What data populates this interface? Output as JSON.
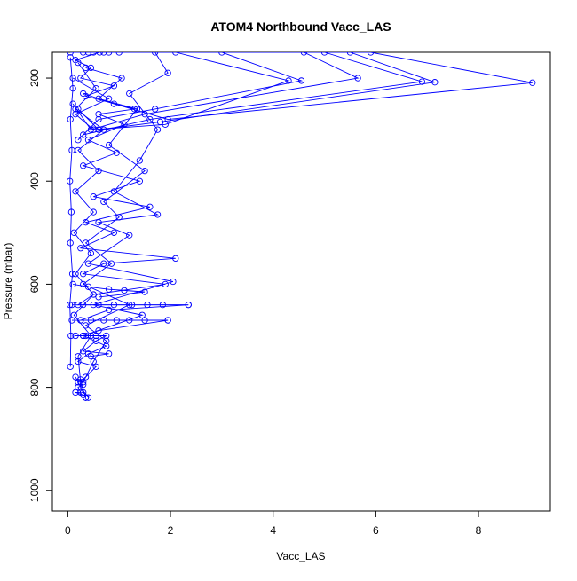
{
  "chart_data": {
    "type": "line",
    "title": "ATOM4 Northbound Vacc_LAS",
    "xlabel": "Vacc_LAS",
    "ylabel": "Pressure (mbar)",
    "xlim": [
      -0.3,
      9.4
    ],
    "ylim": [
      1040,
      150
    ],
    "y_axis_inverted": true,
    "x_ticks": [
      0,
      2,
      4,
      6,
      8
    ],
    "y_ticks": [
      200,
      400,
      600,
      800,
      1000
    ],
    "grid": false,
    "legend": "none",
    "marker": "open-circle",
    "series_color": "#0000ff",
    "series": [
      {
        "points": [
          [
            0.62,
            150
          ],
          [
            0.15,
            165
          ],
          [
            0.45,
            180
          ],
          [
            0.25,
            200
          ],
          [
            0.9,
            215
          ],
          [
            0.35,
            235
          ],
          [
            1.3,
            260
          ],
          [
            0.6,
            270
          ],
          [
            1.1,
            290
          ],
          [
            0.4,
            320
          ],
          [
            0.95,
            345
          ],
          [
            0.3,
            370
          ],
          [
            1.4,
            400
          ],
          [
            0.5,
            430
          ],
          [
            1.6,
            450
          ],
          [
            0.35,
            480
          ],
          [
            0.9,
            500
          ],
          [
            0.25,
            530
          ],
          [
            2.1,
            550
          ],
          [
            0.7,
            560
          ],
          [
            0.3,
            580
          ],
          [
            1.9,
            600
          ],
          [
            0.5,
            620
          ],
          [
            0.2,
            640
          ],
          [
            2.35,
            640
          ],
          [
            0.8,
            650
          ],
          [
            0.25,
            670
          ],
          [
            1.95,
            670
          ],
          [
            0.6,
            690
          ],
          [
            0.3,
            700
          ],
          [
            0.75,
            720
          ],
          [
            0.4,
            735
          ],
          [
            0.2,
            750
          ],
          [
            0.55,
            760
          ],
          [
            0.35,
            780
          ],
          [
            0.2,
            790
          ],
          [
            0.3,
            810
          ],
          [
            0.4,
            820
          ]
        ]
      },
      {
        "points": [
          [
            0.05,
            150
          ],
          [
            2.1,
            150
          ],
          [
            4.3,
            205
          ],
          [
            1.9,
            290
          ],
          [
            0.5,
            300
          ],
          [
            0.15,
            270
          ],
          [
            0.8,
            240
          ],
          [
            0.1,
            200
          ]
        ]
      },
      {
        "points": [
          [
            0.3,
            150
          ],
          [
            3.0,
            150
          ],
          [
            4.55,
            205
          ],
          [
            1.7,
            260
          ],
          [
            0.6,
            280
          ],
          [
            0.2,
            320
          ]
        ]
      },
      {
        "points": [
          [
            0.4,
            150
          ],
          [
            4.6,
            150
          ],
          [
            5.65,
            200
          ],
          [
            1.5,
            270
          ],
          [
            0.45,
            300
          ],
          [
            0.1,
            250
          ]
        ]
      },
      {
        "points": [
          [
            0.5,
            150
          ],
          [
            5.0,
            150
          ],
          [
            6.9,
            207
          ],
          [
            1.6,
            280
          ],
          [
            0.3,
            310
          ]
        ]
      },
      {
        "points": [
          [
            0.7,
            150
          ],
          [
            5.5,
            150
          ],
          [
            7.15,
            208
          ],
          [
            1.8,
            285
          ],
          [
            0.6,
            300
          ],
          [
            0.2,
            260
          ]
        ]
      },
      {
        "points": [
          [
            0.8,
            150
          ],
          [
            5.9,
            150
          ],
          [
            9.05,
            209
          ],
          [
            1.95,
            280
          ],
          [
            0.9,
            250
          ],
          [
            0.3,
            230
          ]
        ]
      },
      {
        "points": [
          [
            1.0,
            150
          ],
          [
            1.7,
            150
          ],
          [
            1.95,
            190
          ],
          [
            1.2,
            230
          ],
          [
            1.75,
            300
          ],
          [
            1.4,
            360
          ],
          [
            0.9,
            420
          ],
          [
            1.75,
            465
          ],
          [
            0.6,
            480
          ],
          [
            1.2,
            505
          ],
          [
            0.4,
            560
          ],
          [
            2.05,
            595
          ],
          [
            0.5,
            640
          ],
          [
            1.45,
            660
          ],
          [
            0.3,
            700
          ]
        ]
      },
      {
        "points": [
          [
            0.2,
            170
          ],
          [
            0.55,
            220
          ],
          [
            0.15,
            260
          ],
          [
            0.7,
            300
          ],
          [
            0.2,
            340
          ],
          [
            0.6,
            380
          ],
          [
            0.15,
            420
          ],
          [
            0.5,
            460
          ],
          [
            0.12,
            500
          ],
          [
            0.45,
            540
          ],
          [
            0.15,
            580
          ],
          [
            0.5,
            620
          ],
          [
            0.12,
            660
          ],
          [
            0.45,
            700
          ],
          [
            0.2,
            740
          ],
          [
            0.25,
            790
          ],
          [
            0.35,
            820
          ]
        ]
      },
      {
        "points": [
          [
            0.05,
            160
          ],
          [
            0.1,
            220
          ],
          [
            0.05,
            280
          ],
          [
            0.08,
            340
          ],
          [
            0.04,
            400
          ],
          [
            0.07,
            460
          ],
          [
            0.05,
            520
          ],
          [
            0.09,
            580
          ],
          [
            0.04,
            640
          ],
          [
            0.06,
            700
          ],
          [
            0.05,
            760
          ]
        ]
      },
      {
        "points": [
          [
            0.35,
            180
          ],
          [
            1.05,
            200
          ],
          [
            0.6,
            240
          ],
          [
            1.35,
            260
          ],
          [
            0.8,
            330
          ],
          [
            1.5,
            380
          ],
          [
            0.7,
            440
          ],
          [
            1.0,
            470
          ],
          [
            0.35,
            520
          ],
          [
            0.85,
            560
          ],
          [
            0.3,
            600
          ],
          [
            1.2,
            640
          ],
          [
            0.35,
            680
          ],
          [
            0.75,
            710
          ],
          [
            0.5,
            750
          ],
          [
            0.3,
            790
          ]
        ]
      },
      {
        "points": [
          [
            0.08,
            640
          ],
          [
            0.3,
            640
          ],
          [
            0.6,
            640
          ],
          [
            0.9,
            640
          ],
          [
            1.25,
            640
          ],
          [
            1.55,
            640
          ],
          [
            1.85,
            640
          ],
          [
            2.35,
            640
          ]
        ]
      },
      {
        "points": [
          [
            0.08,
            670
          ],
          [
            0.25,
            670
          ],
          [
            0.45,
            670
          ],
          [
            0.7,
            670
          ],
          [
            0.95,
            670
          ],
          [
            1.2,
            670
          ],
          [
            1.5,
            670
          ],
          [
            1.95,
            670
          ]
        ]
      },
      {
        "points": [
          [
            0.1,
            600
          ],
          [
            0.4,
            605
          ],
          [
            0.8,
            610
          ],
          [
            1.1,
            612
          ],
          [
            1.5,
            615
          ],
          [
            0.6,
            625
          ]
        ]
      },
      {
        "points": [
          [
            0.15,
            700
          ],
          [
            0.35,
            700
          ],
          [
            0.55,
            700
          ],
          [
            0.75,
            700
          ],
          [
            0.55,
            710
          ],
          [
            0.3,
            730
          ],
          [
            0.8,
            735
          ],
          [
            0.45,
            740
          ]
        ]
      },
      {
        "points": [
          [
            0.15,
            780
          ],
          [
            0.2,
            790
          ],
          [
            0.25,
            785
          ],
          [
            0.3,
            795
          ],
          [
            0.2,
            800
          ],
          [
            0.25,
            810
          ],
          [
            0.15,
            810
          ],
          [
            0.3,
            815
          ],
          [
            0.35,
            820
          ]
        ]
      }
    ]
  }
}
